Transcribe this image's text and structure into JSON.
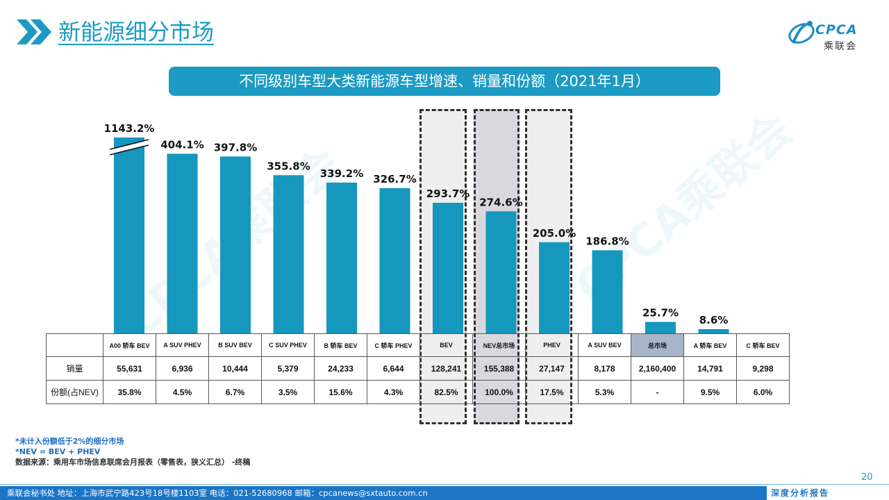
{
  "header": {
    "title": "新能源细分市场",
    "logo_text": "CPCA",
    "logo_sub": "乘联会"
  },
  "subtitle": "不同级别车型大类新能源车型增速、销量和份额（2021年1月）",
  "chart_data": {
    "type": "bar",
    "title": "不同级别车型大类新能源车型增速、销量和份额（2021年1月）",
    "categories": [
      "A00 轿车 BEV",
      "A SUV PHEV",
      "B SUV BEV",
      "C SUV PHEV",
      "B 轿车 BEV",
      "C 轿车 PHEV",
      "BEV",
      "NEV总市场",
      "PHEV",
      "A SUV BEV",
      "总市场",
      "A 轿车 BEV",
      "C 轿车 BEV"
    ],
    "series": [
      {
        "values": [
          1143.2,
          404.1,
          397.8,
          355.8,
          339.2,
          326.7,
          293.7,
          274.6,
          205.0,
          186.8,
          25.7,
          8.6,
          null
        ],
        "labels": [
          "1143.2%",
          "404.1%",
          "397.8%",
          "355.8%",
          "339.2%",
          "326.7%",
          "293.7%",
          "274.6%",
          "205.0%",
          "186.8%",
          "25.7%",
          "8.6%",
          ""
        ]
      }
    ],
    "axis_break": "broken bar on first category (1143.2%)",
    "highlighted": [
      "BEV",
      "NEV总市场",
      "PHEV"
    ],
    "table": {
      "sales_label": "销量",
      "share_label": "份额(占NEV)",
      "sales": [
        "55,631",
        "6,936",
        "10,444",
        "5,379",
        "24,233",
        "6,644",
        "128,241",
        "155,388",
        "27,147",
        "8,178",
        "2,160,400",
        "14,791",
        "9,298"
      ],
      "share": [
        "35.8%",
        "4.5%",
        "6.7%",
        "3.5%",
        "15.6%",
        "4.3%",
        "82.5%",
        "100.0%",
        "17.5%",
        "5.3%",
        "-",
        "9.5%",
        "6.0%"
      ]
    },
    "colors": {
      "bar": "#1597be",
      "total_header": "#a7b5c9"
    }
  },
  "notes": [
    "*未计入份额低于2%的细分市场",
    "*NEV = BEV + PHEV",
    "数据来源：乘用车市场信息联席会月报表（零售表，狭义汇总）  -终稿"
  ],
  "page_number": "20",
  "footer": {
    "text": "乘联会秘书处    地址：上海市武宁路423号18号楼1103室     电话：021-52680968     邮箱：cpcanews@sxtauto.com.cn",
    "tag": "深度分析报告"
  },
  "watermark": "CPCA乘联会"
}
